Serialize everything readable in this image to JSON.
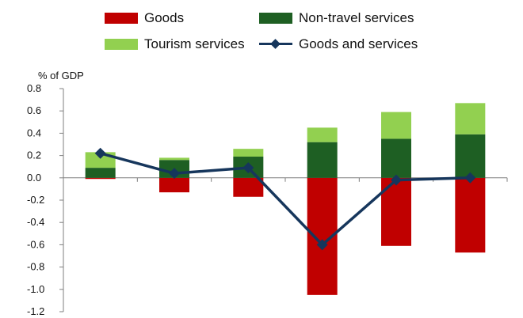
{
  "legend": {
    "goods": "Goods",
    "non_travel": "Non-travel services",
    "tourism": "Tourism services",
    "total": "Goods and services"
  },
  "unit_label": "% of GDP",
  "colors": {
    "goods": "#c00000",
    "non_travel": "#1e5f23",
    "tourism": "#92d050",
    "total": "#16365c",
    "axis": "#7f7f7f",
    "grid": "#d9d9d9"
  },
  "chart_data": {
    "type": "bar",
    "stacked": true,
    "ylim": [
      -1.2,
      0.8
    ],
    "ytick_step": 0.2,
    "ytick_labels": [
      "0.8",
      "0.6",
      "0.4",
      "0.2",
      "0.0",
      "-0.2",
      "-0.4",
      "-0.6",
      "-0.8",
      "-1.0",
      "-1.2"
    ],
    "ytick_values": [
      0.8,
      0.6,
      0.4,
      0.2,
      0.0,
      -0.2,
      -0.4,
      -0.6,
      -0.8,
      -1.0,
      -1.2
    ],
    "ylabel": "% of GDP",
    "grid": true,
    "legend_position": "top",
    "series": [
      {
        "name": "Goods",
        "key": "goods",
        "values": [
          -0.01,
          -0.13,
          -0.17,
          -1.05,
          -0.61,
          -0.67
        ]
      },
      {
        "name": "Non-travel services",
        "key": "non_travel",
        "values": [
          0.09,
          0.16,
          0.19,
          0.32,
          0.35,
          0.39
        ]
      },
      {
        "name": "Tourism services",
        "key": "tourism",
        "values": [
          0.14,
          0.02,
          0.07,
          0.13,
          0.24,
          0.28
        ]
      }
    ],
    "line": {
      "name": "Goods and services",
      "key": "total",
      "values": [
        0.22,
        0.04,
        0.09,
        -0.6,
        -0.02,
        0.0
      ]
    }
  }
}
